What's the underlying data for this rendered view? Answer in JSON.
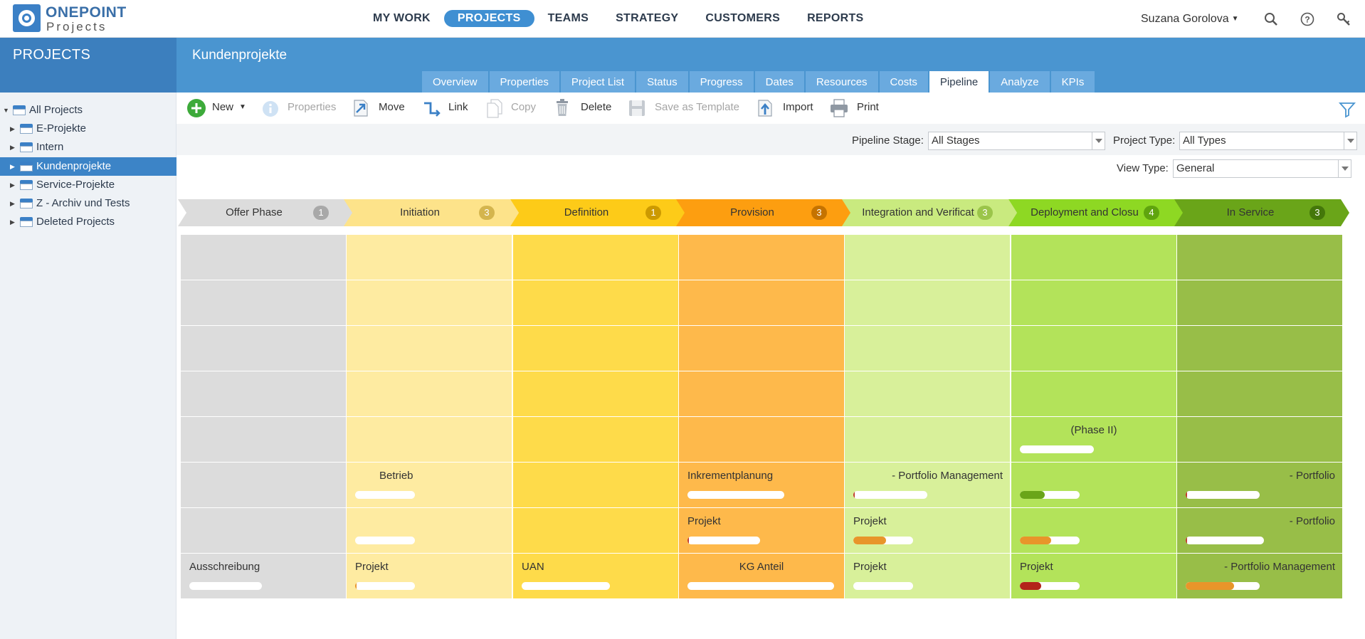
{
  "app": {
    "logo_line1": "ONEPOINT",
    "logo_line2": "Projects",
    "nav": [
      "MY WORK",
      "PROJECTS",
      "TEAMS",
      "STRATEGY",
      "CUSTOMERS",
      "REPORTS"
    ],
    "active_nav": "PROJECTS",
    "user": "Suzana Gorolova"
  },
  "left": {
    "title": "PROJECTS",
    "tree": [
      {
        "label": "All Projects",
        "expanded": true
      },
      {
        "label": "E-Projekte"
      },
      {
        "label": "Intern"
      },
      {
        "label": "Kundenprojekte",
        "selected": true
      },
      {
        "label": "Service-Projekte"
      },
      {
        "label": "Z - Archiv und Tests"
      },
      {
        "label": "Deleted Projects"
      }
    ]
  },
  "content": {
    "title": "Kundenprojekte",
    "tabs": [
      "Overview",
      "Properties",
      "Project List",
      "Status",
      "Progress",
      "Dates",
      "Resources",
      "Costs",
      "Pipeline",
      "Analyze",
      "KPIs"
    ],
    "active_tab": "Pipeline"
  },
  "toolbar": {
    "new": "New",
    "properties": "Properties",
    "move": "Move",
    "link": "Link",
    "copy": "Copy",
    "delete": "Delete",
    "save_template": "Save as Template",
    "import": "Import",
    "print": "Print"
  },
  "filters": {
    "pipeline_stage_label": "Pipeline Stage:",
    "pipeline_stage_value": "All Stages",
    "project_type_label": "Project Type:",
    "project_type_value": "All Types",
    "view_type_label": "View Type:",
    "view_type_value": "General"
  },
  "stages": [
    {
      "name": "Offer Phase",
      "count": "1",
      "color": "#dcdcdc",
      "cell_color": "#dcdcdc",
      "badge": "#a8a8a8"
    },
    {
      "name": "Initiation",
      "count": "3",
      "color": "#fde38a",
      "cell_color": "#feeba1",
      "badge": "#d4b54e"
    },
    {
      "name": "Definition",
      "count": "1",
      "color": "#fdcb18",
      "cell_color": "#fedb4a",
      "badge": "#cc9a00"
    },
    {
      "name": "Provision",
      "count": "3",
      "color": "#fd9e10",
      "cell_color": "#feb94b",
      "badge": "#c57300"
    },
    {
      "name": "Integration and Verificat",
      "count": "3",
      "color": "#c9ea7f",
      "cell_color": "#d8f09a",
      "badge": "#9bc54a"
    },
    {
      "name": "Deployment and Closu",
      "count": "4",
      "color": "#8ed823",
      "cell_color": "#b3e35a",
      "badge": "#5fa40e"
    },
    {
      "name": "In Service",
      "count": "3",
      "color": "#6aa519",
      "cell_color": "#98be48",
      "badge": "#44770a"
    }
  ],
  "cards": [
    {
      "col": 5,
      "row": 4,
      "label": "(Phase II)",
      "align": "center",
      "progress": 0,
      "bar_color": "#f0a030"
    },
    {
      "col": 1,
      "row": 5,
      "label": "Betrieb",
      "align": "left-indent",
      "progress": 0,
      "bar_color": "#f0a030"
    },
    {
      "col": 3,
      "row": 5,
      "label": "Inkrementplanung",
      "align": "left",
      "progress": 0,
      "bar_color": "#f0a030"
    },
    {
      "col": 4,
      "row": 5,
      "label": "- Portfolio Management",
      "align": "right",
      "progress": 0.02,
      "bar_color": "#c0392b"
    },
    {
      "col": 5,
      "row": 5,
      "label": "",
      "align": "left",
      "progress": 0.42,
      "bar_color": "#6aa519"
    },
    {
      "col": 6,
      "row": 5,
      "label": "- Portfolio",
      "align": "right",
      "progress": 0.02,
      "bar_color": "#c0392b"
    },
    {
      "col": 1,
      "row": 6,
      "label": "",
      "align": "left",
      "progress": 0,
      "bar_color": "#f0a030"
    },
    {
      "col": 3,
      "row": 6,
      "label": "Projekt",
      "align": "left",
      "progress": 0.02,
      "bar_color": "#c0392b"
    },
    {
      "col": 4,
      "row": 6,
      "label": "Projekt",
      "align": "left",
      "progress": 0.55,
      "bar_color": "#e8952a"
    },
    {
      "col": 5,
      "row": 6,
      "label": "",
      "align": "left",
      "progress": 0.52,
      "bar_color": "#e8952a"
    },
    {
      "col": 6,
      "row": 6,
      "label": "- Portfolio",
      "align": "right",
      "progress": 0.02,
      "bar_color": "#c0392b"
    },
    {
      "col": 0,
      "row": 7,
      "label": "Ausschreibung",
      "align": "left",
      "progress": 0,
      "bar_color": "#f0a030"
    },
    {
      "col": 1,
      "row": 7,
      "label": "Projekt",
      "align": "left",
      "progress": 0.02,
      "bar_color": "#e8952a"
    },
    {
      "col": 2,
      "row": 7,
      "label": "UAN",
      "align": "left",
      "progress": 0,
      "bar_color": "#f0a030"
    },
    {
      "col": 3,
      "row": 7,
      "label": "KG Anteil",
      "align": "center",
      "progress": 0,
      "bar_color": "#f0a030"
    },
    {
      "col": 4,
      "row": 7,
      "label": "Projekt",
      "align": "left",
      "progress": 0,
      "bar_color": "#f0a030"
    },
    {
      "col": 5,
      "row": 7,
      "label": "Projekt",
      "align": "left",
      "progress": 0.36,
      "bar_color": "#b3231a"
    },
    {
      "col": 6,
      "row": 7,
      "label": "- Portfolio Management",
      "align": "right",
      "progress": 0.65,
      "bar_color": "#e8952a"
    }
  ]
}
